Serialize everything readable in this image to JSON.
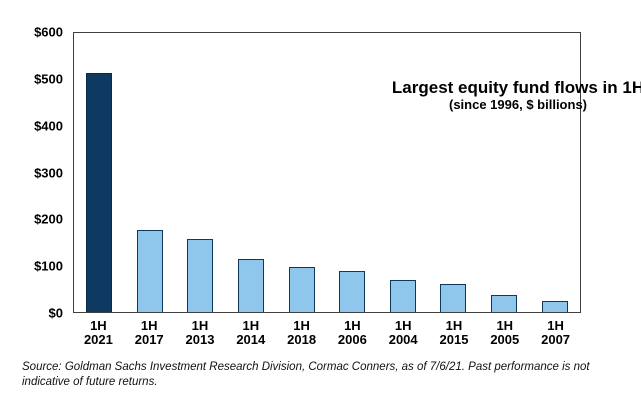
{
  "chart_data": {
    "type": "bar",
    "title": "Largest equity fund flows in 1H",
    "subtitle": "(since 1996, $ billions)",
    "categories": [
      "1H 2021",
      "1H 2017",
      "1H 2013",
      "1H 2014",
      "1H 2018",
      "1H 2006",
      "1H 2004",
      "1H 2015",
      "1H 2005",
      "1H 2007"
    ],
    "values": [
      515,
      177,
      158,
      115,
      96,
      88,
      69,
      61,
      37,
      24
    ],
    "xlabel": "",
    "ylabel": "",
    "unit": "$ billions",
    "ylim": [
      0,
      600
    ],
    "y_ticks": [
      "$600",
      "$500",
      "$400",
      "$300",
      "$200",
      "$100",
      "$0"
    ],
    "grid": false,
    "legend": null,
    "highlight_index": 0
  },
  "colors": {
    "highlight_bar_fill": "#0e3a61",
    "highlight_bar_border": "#0a2b48",
    "bar_fill": "#8ec7eb",
    "bar_border": "#10375c",
    "plot_border": "#3f3f3f",
    "text": "#000000"
  },
  "footer": {
    "line1": "Source: Goldman Sachs Investment Research Division, Cormac Conners, as of 7/6/21. Past performance is not",
    "line2": "indicative of future returns."
  }
}
